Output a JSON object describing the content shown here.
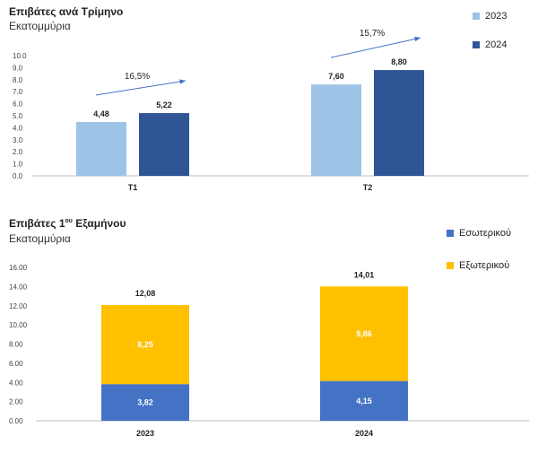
{
  "chart_data": [
    {
      "type": "bar",
      "title": "Επιβάτες ανά Τρίμηνο",
      "subtitle": "Εκατομμύρια",
      "categories": [
        "T1",
        "T2"
      ],
      "series": [
        {
          "name": "2023",
          "values": [
            4.48,
            7.6
          ],
          "labels": [
            "4,48",
            "7,60"
          ],
          "color": "#9dc3e6"
        },
        {
          "name": "2024",
          "values": [
            5.22,
            8.8
          ],
          "labels": [
            "5,22",
            "8,80"
          ],
          "color": "#2f5597"
        }
      ],
      "ylim": [
        0,
        10
      ],
      "yticks": [
        "0.0",
        "1.0",
        "2.0",
        "3.0",
        "4.0",
        "5.0",
        "6.0",
        "7.0",
        "8.0",
        "9.0",
        "10.0"
      ],
      "annotations": [
        "16,5%",
        "15,7%"
      ],
      "arrow_color": "#4472c4",
      "legend": "top-right",
      "grid": false
    },
    {
      "type": "bar",
      "stacked": true,
      "title_main": "Επιβάτες 1",
      "title_sup": "ου",
      "title_end": " Εξαμήνου",
      "subtitle": "Εκατομμύρια",
      "categories": [
        "2023",
        "2024"
      ],
      "series": [
        {
          "name": "Εσωτερικού",
          "values": [
            3.82,
            4.15
          ],
          "labels": [
            "3,82",
            "4,15"
          ],
          "color": "#4472c4"
        },
        {
          "name": "Εξωτερικού",
          "values": [
            8.25,
            9.86
          ],
          "labels": [
            "8,25",
            "9,86"
          ],
          "color": "#ffc000"
        }
      ],
      "totals": [
        "12,08",
        "14,01"
      ],
      "ylim": [
        0,
        16
      ],
      "yticks": [
        "0.00",
        "2.00",
        "4.00",
        "6.00",
        "8.00",
        "10.00",
        "12.00",
        "14.00",
        "16.00"
      ],
      "legend": "top-right",
      "grid": false
    }
  ]
}
